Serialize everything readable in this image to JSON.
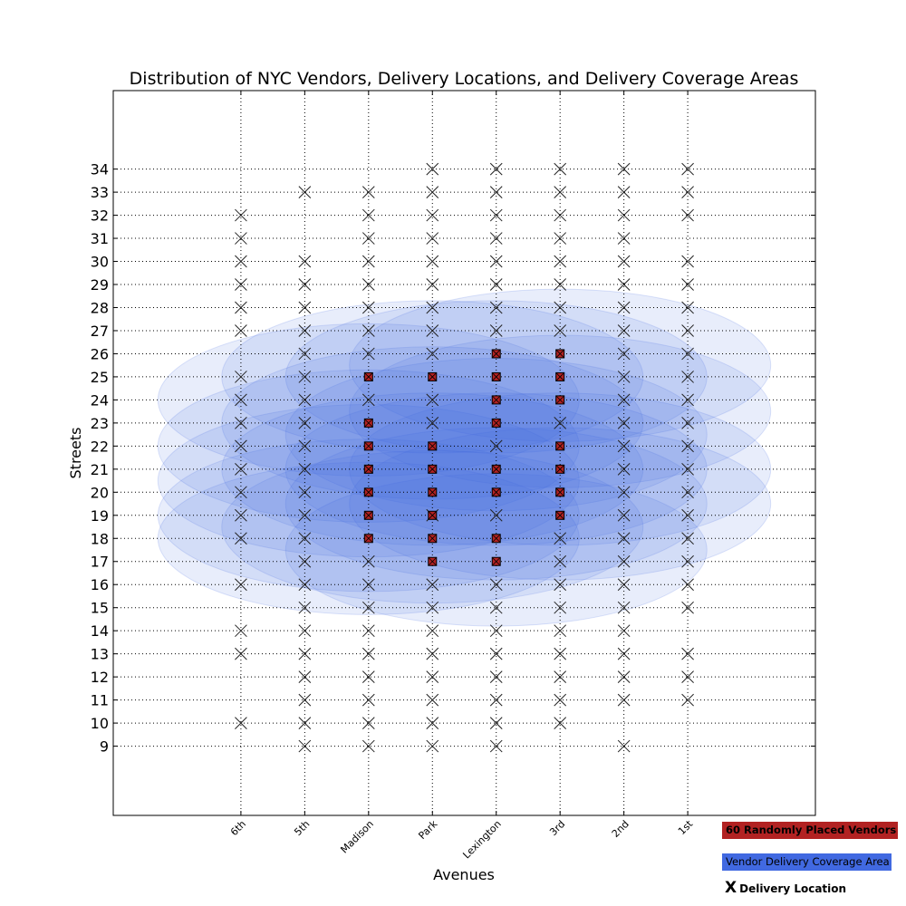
{
  "chart_data": {
    "type": "scatter",
    "title": "Distribution of NYC Vendors, Delivery Locations, and Delivery Coverage Areas",
    "xlabel": "Avenues",
    "ylabel": "Streets",
    "x_categories": [
      "6th",
      "5th",
      "Madison",
      "Park",
      "Lexington",
      "3rd",
      "2nd",
      "1st"
    ],
    "xlim": [
      -2,
      9
    ],
    "y_ticks": [
      9,
      10,
      11,
      12,
      13,
      14,
      15,
      16,
      17,
      18,
      19,
      20,
      21,
      22,
      23,
      24,
      25,
      26,
      27,
      28,
      29,
      30,
      31,
      32,
      33,
      34
    ],
    "ylim": [
      6,
      37.4
    ],
    "grid": true,
    "colors": {
      "vendor": "#b22222",
      "coverage": "#4169e1",
      "delivery": "#222222"
    },
    "vendors": {
      "label": "60 Randomly Placed Vendors",
      "points": [
        [
          "Madison",
          18
        ],
        [
          "Madison",
          19
        ],
        [
          "Madison",
          20
        ],
        [
          "Madison",
          21
        ],
        [
          "Madison",
          22
        ],
        [
          "Madison",
          23
        ],
        [
          "Madison",
          25
        ],
        [
          "Park",
          17
        ],
        [
          "Park",
          18
        ],
        [
          "Park",
          19
        ],
        [
          "Park",
          20
        ],
        [
          "Park",
          21
        ],
        [
          "Park",
          22
        ],
        [
          "Park",
          25
        ],
        [
          "Lexington",
          17
        ],
        [
          "Lexington",
          18
        ],
        [
          "Lexington",
          20
        ],
        [
          "Lexington",
          21
        ],
        [
          "Lexington",
          23
        ],
        [
          "Lexington",
          24
        ],
        [
          "Lexington",
          25
        ],
        [
          "Lexington",
          26
        ],
        [
          "3rd",
          19
        ],
        [
          "3rd",
          20
        ],
        [
          "3rd",
          21
        ],
        [
          "3rd",
          22
        ],
        [
          "3rd",
          24
        ],
        [
          "3rd",
          25
        ],
        [
          "3rd",
          26
        ]
      ]
    },
    "coverage": {
      "label": "Vendor Delivery Coverage Area",
      "circles": [
        {
          "x": "Madison",
          "y": 24,
          "r": 3.3
        },
        {
          "x": "Madison",
          "y": 20.5,
          "r": 3.3
        },
        {
          "x": "Madison",
          "y": 19,
          "r": 3.3
        },
        {
          "x": "Madison",
          "y": 22,
          "r": 3.3
        },
        {
          "x": "Park",
          "y": 21,
          "r": 3.3
        },
        {
          "x": "Park",
          "y": 18.5,
          "r": 3.3
        },
        {
          "x": "Park",
          "y": 23,
          "r": 3.3
        },
        {
          "x": "Lexington",
          "y": 22.5,
          "r": 3.3
        },
        {
          "x": "Lexington",
          "y": 19.5,
          "r": 3.3
        },
        {
          "x": "Lexington",
          "y": 25,
          "r": 3.3
        },
        {
          "x": "Lexington",
          "y": 17.5,
          "r": 3.3
        },
        {
          "x": "3rd",
          "y": 23.5,
          "r": 3.3
        },
        {
          "x": "3rd",
          "y": 21,
          "r": 3.3
        },
        {
          "x": "3rd",
          "y": 25.5,
          "r": 3.3
        },
        {
          "x": "3rd",
          "y": 19.5,
          "r": 3.3
        },
        {
          "x": "Park",
          "y": 25,
          "r": 3.3
        },
        {
          "x": "Madison",
          "y": 18,
          "r": 3.3
        },
        {
          "x": "Lexington",
          "y": 21,
          "r": 3.3
        }
      ]
    },
    "delivery": {
      "label": "Delivery Location",
      "symbol": "X",
      "columns": [
        {
          "x": "6th",
          "y": [
            10,
            13,
            14,
            16,
            18,
            19,
            20,
            21,
            22,
            23,
            24,
            25,
            27,
            28,
            29,
            30,
            31,
            32
          ]
        },
        {
          "x": "5th",
          "y": [
            9,
            10,
            11,
            12,
            13,
            14,
            15,
            16,
            17,
            18,
            19,
            20,
            21,
            22,
            23,
            24,
            25,
            26,
            27,
            28,
            29,
            30,
            33
          ]
        },
        {
          "x": "Madison",
          "y": [
            9,
            10,
            11,
            12,
            13,
            14,
            15,
            16,
            17,
            24,
            26,
            27,
            28,
            29,
            30,
            31,
            32,
            33
          ]
        },
        {
          "x": "Park",
          "y": [
            9,
            10,
            11,
            12,
            13,
            14,
            15,
            16,
            19,
            23,
            24,
            26,
            27,
            28,
            29,
            30,
            31,
            32,
            33,
            34
          ]
        },
        {
          "x": "Lexington",
          "y": [
            9,
            10,
            11,
            12,
            13,
            14,
            15,
            16,
            19,
            22,
            27,
            28,
            29,
            30,
            31,
            32,
            33,
            34
          ]
        },
        {
          "x": "3rd",
          "y": [
            10,
            11,
            12,
            13,
            14,
            15,
            16,
            17,
            18,
            23,
            27,
            28,
            29,
            30,
            31,
            32,
            33,
            34
          ]
        },
        {
          "x": "2nd",
          "y": [
            9,
            11,
            12,
            13,
            14,
            15,
            16,
            17,
            18,
            19,
            20,
            21,
            22,
            23,
            24,
            25,
            26,
            27,
            28,
            29,
            30,
            31,
            32,
            33,
            34
          ]
        },
        {
          "x": "1st",
          "y": [
            11,
            12,
            13,
            15,
            16,
            17,
            18,
            19,
            20,
            21,
            22,
            23,
            24,
            25,
            26,
            27,
            28,
            29,
            30,
            32,
            33,
            34
          ]
        }
      ]
    },
    "legend": {
      "placement": "bottom-right"
    }
  }
}
